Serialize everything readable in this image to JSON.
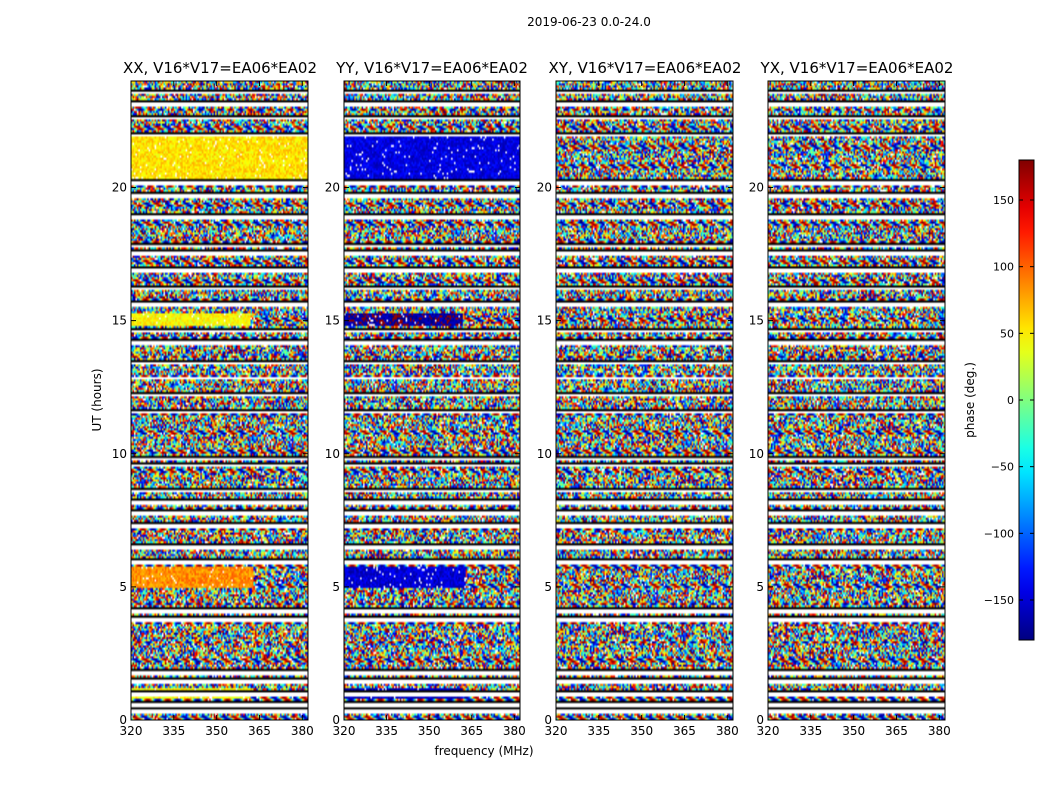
{
  "chart_data": {
    "type": "heatmap",
    "title": "2019-06-23 0.0-24.0",
    "xlabel": "frequency (MHz)",
    "ylabel": "UT (hours)",
    "xlim": [
      320,
      382
    ],
    "ylim": [
      0,
      24
    ],
    "x_ticks": [
      320,
      335,
      350,
      365,
      380
    ],
    "y_ticks": [
      0,
      5,
      10,
      15,
      20
    ],
    "colorbar": {
      "label": "phase (deg.)",
      "range": [
        -180,
        180
      ],
      "ticks": [
        150,
        100,
        50,
        0,
        -50,
        -100,
        -150
      ],
      "tick_labels": [
        "150",
        "100",
        "50",
        "0",
        "−50",
        "−100",
        "−150"
      ],
      "colormap": "jet",
      "colors": [
        "#00007f",
        "#0000ff",
        "#007fff",
        "#00ffff",
        "#7fff7f",
        "#ffff00",
        "#ff7f00",
        "#ff0000",
        "#7f0000"
      ]
    },
    "panels": [
      {
        "title": "XX, V16*V17=EA06*EA02",
        "coherent_regions": [
          {
            "t": [
              20.1,
              21.9
            ],
            "f": [
              320,
              382
            ],
            "phase": 55
          },
          {
            "t": [
              4.95,
              5.75
            ],
            "f": [
              320,
              363
            ],
            "phase": 85
          },
          {
            "t": [
              0.8,
              1.2
            ],
            "f": [
              320,
              362
            ],
            "phase": 45
          },
          {
            "t": [
              14.8,
              15.3
            ],
            "f": [
              320,
              362
            ],
            "phase": 45
          }
        ]
      },
      {
        "title": "YY, V16*V17=EA06*EA02",
        "coherent_regions": [
          {
            "t": [
              20.1,
              21.9
            ],
            "f": [
              320,
              382
            ],
            "phase": -145
          },
          {
            "t": [
              4.95,
              5.75
            ],
            "f": [
              320,
              363
            ],
            "phase": -150
          },
          {
            "t": [
              0.8,
              1.2
            ],
            "f": [
              320,
              362
            ],
            "phase": -160
          },
          {
            "t": [
              14.8,
              15.3
            ],
            "f": [
              320,
              362
            ],
            "phase": -170
          }
        ]
      },
      {
        "title": "XY, V16*V17=EA06*EA02",
        "coherent_regions": []
      },
      {
        "title": "YX, V16*V17=EA06*EA02",
        "coherent_regions": []
      }
    ],
    "gap_rows_hours": [
      0.3,
      0.55,
      0.95,
      1.45,
      1.75,
      3.75,
      4.1,
      5.9,
      6.5,
      7.3,
      7.75,
      8.15,
      8.6,
      9.55,
      9.8,
      11.55,
      12.2,
      12.85,
      13.4,
      14.15,
      14.6,
      15.6,
      16.2,
      16.9,
      17.5,
      17.8,
      18.9,
      19.7,
      20.15,
      21.95,
      22.6,
      23.1,
      23.55
    ]
  }
}
